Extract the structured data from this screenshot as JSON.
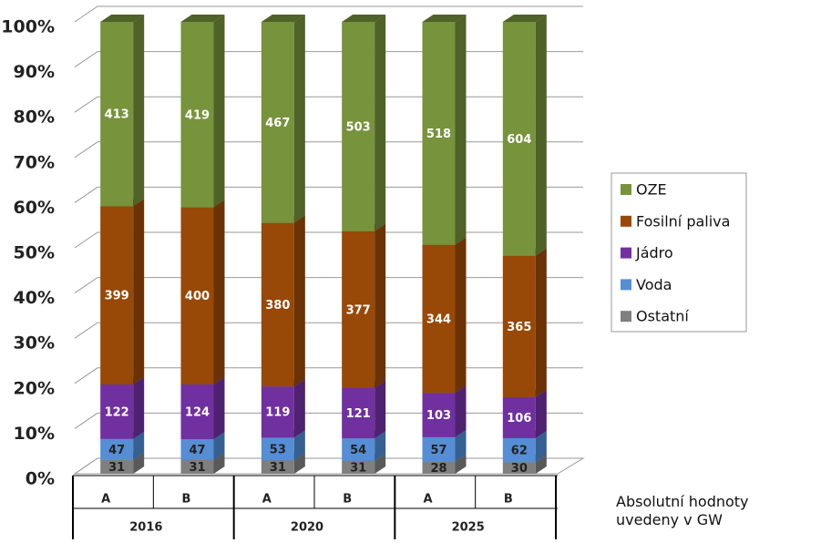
{
  "chart_data": {
    "type": "bar",
    "stacked": "percent",
    "categories": [
      "A",
      "B",
      "A",
      "B",
      "A",
      "B"
    ],
    "groups": [
      "2016",
      "2020",
      "2025"
    ],
    "series": [
      {
        "name": "Ostatní",
        "color": "#7f7f7f",
        "side_color": "#595959",
        "label_color": "#222222",
        "values": [
          31,
          31,
          31,
          31,
          28,
          30
        ]
      },
      {
        "name": "Voda",
        "color": "#558ed5",
        "side_color": "#376092",
        "label_color": "#222222",
        "values": [
          47,
          47,
          53,
          54,
          57,
          62
        ]
      },
      {
        "name": "Jádro",
        "color": "#7030a0",
        "side_color": "#4e2270",
        "label_color": "#ffffff",
        "values": [
          122,
          124,
          119,
          121,
          103,
          106
        ]
      },
      {
        "name": "Fosilní paliva",
        "color": "#984807",
        "side_color": "#6b3206",
        "label_color": "#ffffff",
        "values": [
          399,
          400,
          380,
          377,
          344,
          365
        ]
      },
      {
        "name": "OZE",
        "color": "#77933c",
        "side_color": "#4f6228",
        "label_color": "#ffffff",
        "values": [
          413,
          419,
          467,
          503,
          518,
          604
        ]
      }
    ],
    "ylim": [
      0,
      100
    ],
    "yticks": [
      {
        "value": 0,
        "label": "0%"
      },
      {
        "value": 10,
        "label": "10%"
      },
      {
        "value": 20,
        "label": "20%"
      },
      {
        "value": 30,
        "label": "30%"
      },
      {
        "value": 40,
        "label": "40%"
      },
      {
        "value": 50,
        "label": "50%"
      },
      {
        "value": 60,
        "label": "60%"
      },
      {
        "value": 70,
        "label": "70%"
      },
      {
        "value": 80,
        "label": "80%"
      },
      {
        "value": 90,
        "label": "90%"
      },
      {
        "value": 100,
        "label": "100%"
      }
    ],
    "grid": true,
    "legend": "right",
    "annotation": "Absolutní hodnoty uvedeny v GW"
  }
}
